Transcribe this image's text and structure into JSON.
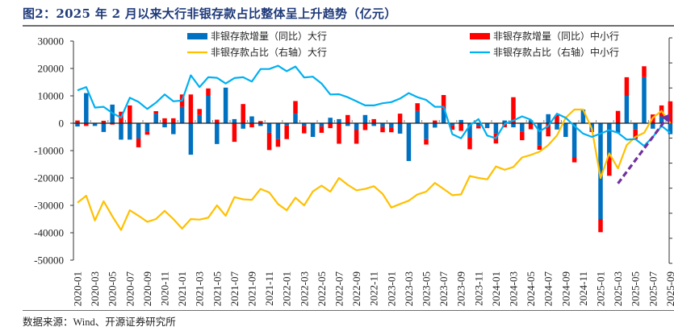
{
  "title": "图2：2025 年 2 月以来大行非银存款占比整体呈上升趋势（亿元）",
  "source": "数据来源：Wind、开源证券研究所",
  "colors": {
    "big_bar": "#0070c0",
    "small_bar": "#ff0000",
    "big_line": "#ffc000",
    "small_line": "#00b0f0",
    "arrow": "#7030a0",
    "title": "#1f3a7a"
  },
  "chart_data": {
    "type": "bar",
    "title": "2025 年 2 月以来大行非银存款占比整体呈上升趋势（亿元）",
    "xlabel": "",
    "ylabel": "",
    "ylim": [
      -50000,
      30000
    ],
    "yticks": [
      30000,
      20000,
      10000,
      0,
      -10000,
      -20000,
      -30000,
      -40000,
      -50000
    ],
    "ytick_labels": [
      "30000",
      "20000",
      "10000",
      "0",
      "-10000",
      "-20000",
      "-30000",
      "-40000",
      "-50000"
    ],
    "right_axis": {
      "labels_visible": false,
      "note": "右轴刻度未显示；折线按左轴等效位置读取"
    },
    "legend_position": "top",
    "legend": [
      {
        "label": "非银存款增量（同比）大行",
        "kind": "bar",
        "series": "big_bar"
      },
      {
        "label": "非银存款增量（同比）中小行",
        "kind": "bar",
        "series": "small_bar"
      },
      {
        "label": "非银存款占比（右轴）大行",
        "kind": "line",
        "series": "big_line"
      },
      {
        "label": "非银存款占比（右轴）中小行",
        "kind": "line",
        "series": "small_line"
      }
    ],
    "x_tick_labels": [
      "2020-01",
      "2020-03",
      "2020-05",
      "2020-07",
      "2020-09",
      "2020-11",
      "2021-01",
      "2021-03",
      "2021-05",
      "2021-07",
      "2021-09",
      "2021-11",
      "2022-01",
      "2022-03",
      "2022-05",
      "2022-07",
      "2022-09",
      "2022-11",
      "2023-01",
      "2023-03",
      "2023-05",
      "2023-07",
      "2023-09",
      "2023-11",
      "2024-01",
      "2024-03",
      "2024-05",
      "2024-07",
      "2024-09",
      "2024-11",
      "2025-01",
      "2025-03",
      "2025-05",
      "2025-07",
      "2025-09"
    ],
    "categories": [
      "2020-01",
      "2020-02",
      "2020-03",
      "2020-04",
      "2020-05",
      "2020-06",
      "2020-07",
      "2020-08",
      "2020-09",
      "2020-10",
      "2020-11",
      "2020-12",
      "2021-01",
      "2021-02",
      "2021-03",
      "2021-04",
      "2021-05",
      "2021-06",
      "2021-07",
      "2021-08",
      "2021-09",
      "2021-10",
      "2021-11",
      "2021-12",
      "2022-01",
      "2022-02",
      "2022-03",
      "2022-04",
      "2022-05",
      "2022-06",
      "2022-07",
      "2022-08",
      "2022-09",
      "2022-10",
      "2022-11",
      "2022-12",
      "2023-01",
      "2023-02",
      "2023-03",
      "2023-04",
      "2023-05",
      "2023-06",
      "2023-07",
      "2023-08",
      "2023-09",
      "2023-10",
      "2023-11",
      "2023-12",
      "2024-01",
      "2024-02",
      "2024-03",
      "2024-04",
      "2024-05",
      "2024-06",
      "2024-07",
      "2024-08",
      "2024-09",
      "2024-10",
      "2024-11",
      "2024-12",
      "2025-01",
      "2025-02",
      "2025-03",
      "2025-04",
      "2025-05",
      "2025-06",
      "2025-07",
      "2025-08",
      "2025-09"
    ],
    "series": [
      {
        "name": "非银存款增量（同比）大行",
        "type": "bar",
        "stack": "s",
        "values": [
          -1200,
          11000,
          -1000,
          -3200,
          6800,
          -6000,
          -6000,
          -5600,
          -3000,
          3500,
          -1500,
          -4000,
          6000,
          -11500,
          3000,
          10000,
          -7600,
          13000,
          1500,
          -2000,
          2500,
          -1000,
          -3500,
          -5800,
          -800,
          3500,
          -1000,
          -5000,
          -1200,
          2000,
          1500,
          -1000,
          -2500,
          3000,
          -1000,
          -1300,
          -1500,
          -3800,
          -13800,
          4500,
          -5800,
          -1600,
          5300,
          -800,
          1200,
          -5300,
          -1000,
          -1500,
          -3600,
          1000,
          -1500,
          -3000,
          1100,
          -8200,
          3300,
          -2300,
          -5000,
          -12500,
          5000,
          -2600,
          -35000,
          -12000,
          -3500,
          10000,
          -2300,
          16800,
          -2000,
          2500,
          -4000
        ]
      },
      {
        "name": "非银存款增量（同比）中小行",
        "type": "bar",
        "stack": "s",
        "values": [
          1000,
          -1000,
          0,
          900,
          -500,
          4200,
          6500,
          -3200,
          -1200,
          900,
          1800,
          1800,
          4500,
          10500,
          2200,
          2700,
          1300,
          0,
          -6800,
          7000,
          -1500,
          800,
          -6300,
          -2800,
          -5000,
          4600,
          -2700,
          0,
          -2300,
          -1800,
          -7500,
          3000,
          -5000,
          -2500,
          1500,
          -2000,
          -1800,
          3500,
          0,
          2800,
          -2000,
          1000,
          5000,
          -1600,
          -2800,
          -4200,
          -900,
          -300,
          -3800,
          -1500,
          9500,
          -3200,
          -2200,
          -1500,
          -4800,
          3000,
          0,
          -1800,
          0,
          -600,
          -4800,
          -7200,
          4500,
          6800,
          -3500,
          4000,
          3200,
          4000,
          8000
        ]
      },
      {
        "name": "非银存款占比（右轴）大行",
        "type": "line",
        "axis": "right",
        "values_left_equiv": [
          -29000,
          -26500,
          -35500,
          -28500,
          -34000,
          -39000,
          -31800,
          -33800,
          -36000,
          -35000,
          -32000,
          -35000,
          -38500,
          -35000,
          -35200,
          -34500,
          -30000,
          -33800,
          -27000,
          -27800,
          -28000,
          -24000,
          -25300,
          -29500,
          -31800,
          -27200,
          -30000,
          -24900,
          -22800,
          -25000,
          -20000,
          -22500,
          -24500,
          -24000,
          -23000,
          -25800,
          -30800,
          -29500,
          -28300,
          -26000,
          -25000,
          -21800,
          -24000,
          -26300,
          -26000,
          -19300,
          -20000,
          -20500,
          -15800,
          -17000,
          -16000,
          -12500,
          -11600,
          -10400,
          -8000,
          -4500,
          2000,
          5000,
          5000,
          -2000,
          -20000,
          -11000,
          -16500,
          -8000,
          -5000,
          -3500,
          2000,
          4500,
          0
        ]
      },
      {
        "name": "非银存款占比（右轴）中小行",
        "type": "line",
        "axis": "right",
        "values_left_equiv": [
          12000,
          13200,
          5700,
          6000,
          3700,
          2000,
          9300,
          7800,
          5200,
          7500,
          10500,
          8000,
          8300,
          17500,
          13200,
          16800,
          16600,
          14500,
          16500,
          16800,
          15200,
          19800,
          19800,
          21000,
          19000,
          20700,
          16700,
          17000,
          14500,
          10500,
          10600,
          9500,
          8000,
          6500,
          6500,
          7300,
          7700,
          9000,
          11000,
          9500,
          8500,
          6000,
          6000,
          -4000,
          -5500,
          -800,
          1500,
          -4500,
          -5500,
          -200,
          1000,
          2500,
          1300,
          -3000,
          -1000,
          3500,
          2000,
          -1000,
          -3800,
          -5000,
          -3800,
          -2500,
          -3500,
          -6000,
          -5800,
          -8300,
          -5000,
          -1000,
          -3500
        ]
      }
    ],
    "annotation": {
      "type": "dashed-arrow",
      "color": "#7030a0",
      "from": [
        "2025-03",
        -22000
      ],
      "to": [
        "2025-09",
        3500
      ]
    }
  }
}
